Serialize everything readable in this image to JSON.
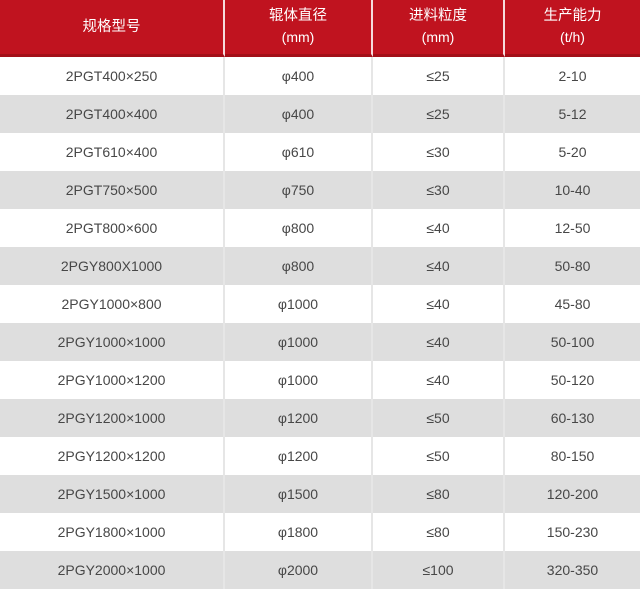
{
  "chart_data": {
    "type": "table",
    "title": "",
    "columns": [
      {
        "title": "规格型号",
        "unit": ""
      },
      {
        "title": "辊体直径",
        "unit": "(mm)"
      },
      {
        "title": "进料粒度",
        "unit": "(mm)"
      },
      {
        "title": "生产能力",
        "unit": "(t/h)"
      }
    ],
    "rows": [
      [
        "2PGT400×250",
        "φ400",
        "≤25",
        "2-10"
      ],
      [
        "2PGT400×400",
        "φ400",
        "≤25",
        "5-12"
      ],
      [
        "2PGT610×400",
        "φ610",
        "≤30",
        "5-20"
      ],
      [
        "2PGT750×500",
        "φ750",
        "≤30",
        "10-40"
      ],
      [
        "2PGT800×600",
        "φ800",
        "≤40",
        "12-50"
      ],
      [
        "2PGY800X1000",
        "φ800",
        "≤40",
        "50-80"
      ],
      [
        "2PGY1000×800",
        "φ1000",
        "≤40",
        "45-80"
      ],
      [
        "2PGY1000×1000",
        "φ1000",
        "≤40",
        "50-100"
      ],
      [
        "2PGY1000×1200",
        "φ1000",
        "≤40",
        "50-120"
      ],
      [
        "2PGY1200×1000",
        "φ1200",
        "≤50",
        "60-130"
      ],
      [
        "2PGY1200×1200",
        "φ1200",
        "≤50",
        "80-150"
      ],
      [
        "2PGY1500×1000",
        "φ1500",
        "≤80",
        "120-200"
      ],
      [
        "2PGY1800×1000",
        "φ1800",
        "≤80",
        "150-230"
      ],
      [
        "2PGY2000×1000",
        "φ2000",
        "≤100",
        "320-350"
      ]
    ]
  },
  "colors": {
    "header_bg": "#c0131f",
    "header_text": "#ffffff",
    "header_border_bottom": "#a30f18",
    "row_bg": "#ffffff",
    "row_alt_bg": "#dedede",
    "cell_text": "#474747",
    "divider": "#e6e6e6"
  }
}
